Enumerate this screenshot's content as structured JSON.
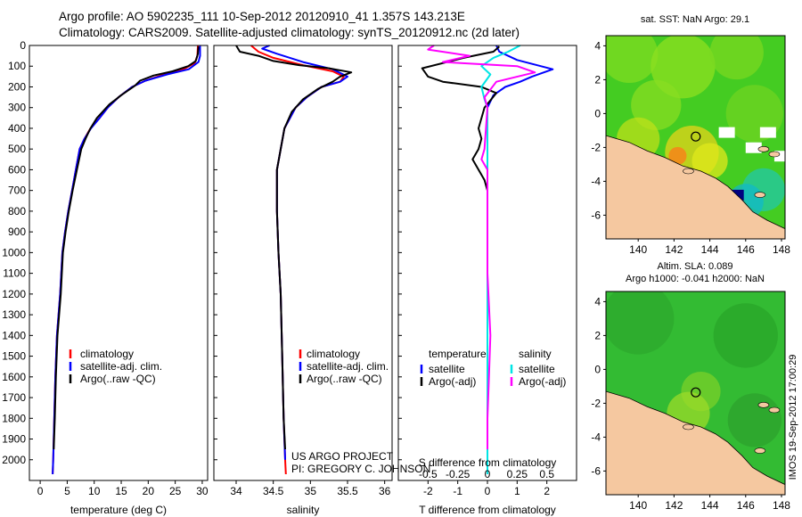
{
  "header": {
    "title_line1": "Argo profile: AO 5902235_111 10-Sep-2012 20120910_41 1.357S 143.213E",
    "title_line2": "Climatology: CARS2009. Satellite-adjusted climatology: synTS_20120912.nc (2d later)"
  },
  "colors": {
    "climatology": "#ff0000",
    "satellite": "#0000ff",
    "argo": "#000000",
    "salinity_satellite": "#00e5e5",
    "salinity_argo": "#ff00ff",
    "land": "#f5c8a0",
    "ocean_sst": "#44cc22",
    "ocean_sla": "#33bb33"
  },
  "chart_data": [
    {
      "type": "line",
      "name": "temperature-profile",
      "xlabel": "temperature (deg C)",
      "xlim": [
        -2,
        31
      ],
      "ylim": [
        2100,
        0
      ],
      "xticks": [
        0,
        5,
        10,
        15,
        20,
        25,
        30
      ],
      "yticks": [
        0,
        100,
        200,
        300,
        400,
        500,
        600,
        700,
        800,
        900,
        1000,
        1100,
        1200,
        1300,
        1400,
        1500,
        1600,
        1700,
        1800,
        1900,
        2000
      ],
      "legend": [
        "climatology",
        "satellite-adj. clim.",
        "Argo(..raw -QC)"
      ],
      "series": [
        {
          "name": "climatology",
          "color": "#ff0000",
          "points": [
            [
              29.2,
              0
            ],
            [
              29.1,
              50
            ],
            [
              28.6,
              85
            ],
            [
              26.5,
              115
            ],
            [
              23,
              140
            ],
            [
              19.5,
              170
            ],
            [
              17,
              200
            ],
            [
              14.5,
              250
            ],
            [
              12.5,
              300
            ],
            [
              11,
              350
            ],
            [
              9.3,
              400
            ],
            [
              8.2,
              450
            ],
            [
              7.3,
              500
            ],
            [
              6.6,
              600
            ],
            [
              5.9,
              700
            ],
            [
              5.2,
              800
            ],
            [
              4.6,
              900
            ],
            [
              4.1,
              1000
            ],
            [
              3.7,
              1200
            ],
            [
              3.1,
              1400
            ],
            [
              2.8,
              1600
            ],
            [
              2.6,
              1800
            ],
            [
              2.4,
              2000
            ],
            [
              2.3,
              2070
            ]
          ]
        },
        {
          "name": "satellite-adj. clim.",
          "color": "#0000ff",
          "points": [
            [
              29.6,
              0
            ],
            [
              29.6,
              50
            ],
            [
              29.3,
              80
            ],
            [
              27.5,
              115
            ],
            [
              23.5,
              140
            ],
            [
              19.5,
              170
            ],
            [
              17,
              200
            ],
            [
              14.5,
              250
            ],
            [
              12.5,
              300
            ],
            [
              11,
              350
            ],
            [
              9.4,
              400
            ],
            [
              8.2,
              450
            ],
            [
              7.3,
              500
            ],
            [
              6.6,
              600
            ],
            [
              5.9,
              700
            ],
            [
              5.2,
              800
            ],
            [
              4.6,
              900
            ],
            [
              4.1,
              1000
            ],
            [
              3.7,
              1200
            ],
            [
              3.1,
              1400
            ],
            [
              2.8,
              1600
            ],
            [
              2.6,
              1800
            ],
            [
              2.4,
              2000
            ],
            [
              2.3,
              2070
            ]
          ]
        },
        {
          "name": "Argo(..raw -QC)",
          "color": "#000000",
          "points": [
            [
              29.3,
              5
            ],
            [
              29.2,
              40
            ],
            [
              28.8,
              75
            ],
            [
              27.4,
              100
            ],
            [
              24.5,
              125
            ],
            [
              21,
              145
            ],
            [
              18.5,
              170
            ],
            [
              17.5,
              195
            ],
            [
              15,
              240
            ],
            [
              12.8,
              285
            ],
            [
              10.5,
              350
            ],
            [
              9.3,
              400
            ],
            [
              8.4,
              450
            ],
            [
              7.6,
              500
            ],
            [
              6.8,
              600
            ],
            [
              6.0,
              700
            ],
            [
              5.3,
              800
            ],
            [
              4.7,
              900
            ],
            [
              4.2,
              1000
            ],
            [
              3.8,
              1200
            ],
            [
              3.2,
              1400
            ],
            [
              2.9,
              1600
            ],
            [
              2.7,
              1800
            ],
            [
              2.5,
              1950
            ]
          ]
        }
      ]
    },
    {
      "type": "line",
      "name": "salinity-profile",
      "xlabel": "salinity",
      "xlim": [
        33.7,
        36.1
      ],
      "ylim": [
        2100,
        0
      ],
      "xticks": [
        34,
        34.5,
        35,
        35.5,
        36
      ],
      "legend": [
        "climatology",
        "satellite-adj. clim.",
        "Argo(..raw -QC)"
      ],
      "series": [
        {
          "name": "climatology",
          "color": "#ff0000",
          "points": [
            [
              34.2,
              0
            ],
            [
              34.3,
              30
            ],
            [
              34.5,
              60
            ],
            [
              34.9,
              95
            ],
            [
              35.3,
              125
            ],
            [
              35.45,
              150
            ],
            [
              35.4,
              175
            ],
            [
              35.15,
              200
            ],
            [
              34.95,
              250
            ],
            [
              34.8,
              300
            ],
            [
              34.65,
              400
            ],
            [
              34.6,
              500
            ],
            [
              34.55,
              600
            ],
            [
              34.55,
              800
            ],
            [
              34.57,
              1000
            ],
            [
              34.6,
              1200
            ],
            [
              34.62,
              1500
            ],
            [
              34.64,
              1800
            ],
            [
              34.66,
              2000
            ],
            [
              34.67,
              2070
            ]
          ]
        },
        {
          "name": "satellite-adj. clim.",
          "color": "#0000ff",
          "points": [
            [
              34.45,
              0
            ],
            [
              34.35,
              15
            ],
            [
              34.55,
              40
            ],
            [
              34.9,
              80
            ],
            [
              35.3,
              115
            ],
            [
              35.5,
              150
            ],
            [
              35.4,
              175
            ],
            [
              35.15,
              200
            ],
            [
              34.95,
              250
            ],
            [
              34.8,
              300
            ],
            [
              34.65,
              400
            ],
            [
              34.6,
              500
            ],
            [
              34.55,
              600
            ],
            [
              34.55,
              800
            ],
            [
              34.57,
              1000
            ],
            [
              34.6,
              1200
            ],
            [
              34.62,
              1500
            ],
            [
              34.64,
              1800
            ],
            [
              34.66,
              2000
            ]
          ]
        },
        {
          "name": "Argo(..raw -QC)",
          "color": "#000000",
          "points": [
            [
              34.0,
              0
            ],
            [
              34.05,
              30
            ],
            [
              34.3,
              50
            ],
            [
              34.5,
              75
            ],
            [
              34.85,
              95
            ],
            [
              35.25,
              110
            ],
            [
              35.55,
              130
            ],
            [
              35.4,
              150
            ],
            [
              35.3,
              175
            ],
            [
              35.1,
              210
            ],
            [
              34.9,
              260
            ],
            [
              34.75,
              320
            ],
            [
              34.65,
              400
            ],
            [
              34.6,
              500
            ],
            [
              34.55,
              600
            ],
            [
              34.55,
              800
            ],
            [
              34.57,
              1000
            ],
            [
              34.6,
              1200
            ],
            [
              34.62,
              1500
            ],
            [
              34.64,
              1800
            ],
            [
              34.66,
              1950
            ]
          ]
        }
      ]
    },
    {
      "type": "line",
      "name": "difference-profile",
      "xlabel": "T difference from climatology",
      "xlabel_top": "S difference from climatology",
      "xlim": [
        -3,
        3
      ],
      "ylim": [
        2100,
        0
      ],
      "xticks": [
        -2,
        -1,
        0,
        1,
        2
      ],
      "xticks_s": [
        {
          "label": "-0.5",
          "x": -2
        },
        {
          "label": "-0.25",
          "x": -1
        },
        {
          "label": "0",
          "x": 0
        },
        {
          "label": "0.25",
          "x": 1
        },
        {
          "label": "0.5",
          "x": 2
        }
      ],
      "legend_left_title": "temperature",
      "legend_right_title": "salinity",
      "legend_left": [
        "satellite",
        "Argo(-adj)"
      ],
      "legend_right": [
        "satellite",
        "Argo(-adj)"
      ],
      "series": [
        {
          "name": "T satellite",
          "color": "#0000ff",
          "points": [
            [
              0.3,
              0
            ],
            [
              0.4,
              30
            ],
            [
              1.0,
              70
            ],
            [
              2.2,
              115
            ],
            [
              1.5,
              150
            ],
            [
              1.1,
              175
            ],
            [
              0.6,
              200
            ],
            [
              0.2,
              240
            ],
            [
              0,
              300
            ],
            [
              0,
              400
            ],
            [
              0,
              600
            ],
            [
              0,
              1000
            ],
            [
              0,
              1500
            ],
            [
              0,
              2070
            ]
          ]
        },
        {
          "name": "T Argo(-adj)",
          "color": "#000000",
          "points": [
            [
              0.4,
              5
            ],
            [
              0.2,
              30
            ],
            [
              -0.8,
              60
            ],
            [
              -2.2,
              110
            ],
            [
              -2.0,
              150
            ],
            [
              -1.5,
              175
            ],
            [
              -0.2,
              200
            ],
            [
              0.3,
              230
            ],
            [
              -0.1,
              300
            ],
            [
              -0.3,
              400
            ],
            [
              -0.2,
              450
            ],
            [
              -0.3,
              500
            ],
            [
              -0.5,
              550
            ],
            [
              -0.3,
              600
            ],
            [
              -0.1,
              650
            ],
            [
              0,
              700
            ],
            [
              0,
              900
            ],
            [
              0,
              1000
            ],
            [
              0,
              1400
            ],
            [
              0,
              1600
            ],
            [
              0,
              2000
            ]
          ]
        },
        {
          "name": "S satellite",
          "color": "#00e5e5",
          "points": [
            [
              1.1,
              0
            ],
            [
              0.7,
              30
            ],
            [
              0.2,
              60
            ],
            [
              -0.2,
              100
            ],
            [
              0.1,
              140
            ],
            [
              -0.2,
              200
            ],
            [
              -0.1,
              260
            ],
            [
              0,
              300
            ],
            [
              0,
              500
            ],
            [
              0,
              1000
            ],
            [
              0,
              1500
            ],
            [
              0,
              2070
            ]
          ]
        },
        {
          "name": "S Argo(-adj)",
          "color": "#ff00ff",
          "points": [
            [
              -1.8,
              0
            ],
            [
              -2.0,
              20
            ],
            [
              -0.6,
              50
            ],
            [
              -1.5,
              80
            ],
            [
              1.0,
              100
            ],
            [
              1.6,
              130
            ],
            [
              0.3,
              175
            ],
            [
              -0.1,
              250
            ],
            [
              0,
              300
            ],
            [
              -0.1,
              500
            ],
            [
              -0.2,
              550
            ],
            [
              0,
              600
            ],
            [
              0,
              900
            ],
            [
              0,
              1100
            ],
            [
              0.1,
              1400
            ],
            [
              0.05,
              1600
            ],
            [
              0,
              1800
            ],
            [
              0,
              1950
            ]
          ]
        }
      ]
    },
    {
      "type": "heatmap",
      "name": "sst-map",
      "title": "sat. SST: NaN Argo: 29.1",
      "xlim": [
        138.2,
        148.2
      ],
      "ylim": [
        -7.4,
        4.6
      ],
      "xticks": [
        140,
        142,
        144,
        146,
        148
      ],
      "yticks": [
        -6,
        -4,
        -2,
        0,
        2,
        4
      ],
      "argo_position": [
        143.213,
        -1.357
      ]
    },
    {
      "type": "heatmap",
      "name": "sla-map",
      "title": "Altim. SLA: 0.089",
      "subtitle": "Argo h1000: -0.041 h2000: NaN",
      "xlim": [
        138.2,
        148.2
      ],
      "ylim": [
        -7.4,
        4.6
      ],
      "xticks": [
        140,
        142,
        144,
        146,
        148
      ],
      "yticks": [
        -6,
        -4,
        -2,
        0,
        2,
        4
      ],
      "argo_position": [
        143.213,
        -1.357
      ]
    }
  ],
  "credits": {
    "project_line1": "US ARGO PROJECT",
    "project_line2": "PI: GREGORY C. JOHNSON",
    "stamp": "IMOS 19-Sep-2012 17:00:29"
  }
}
